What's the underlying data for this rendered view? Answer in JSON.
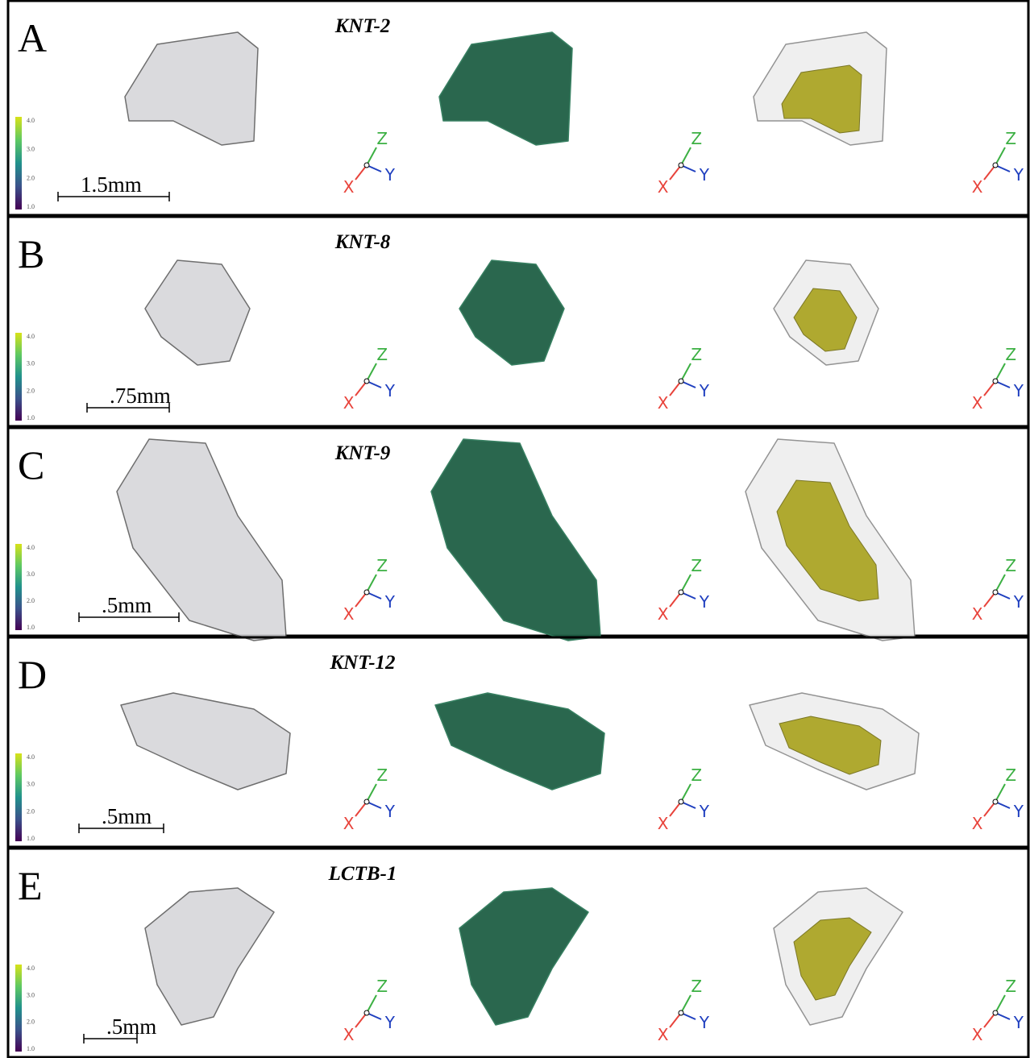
{
  "panels": [
    {
      "letter": "A",
      "sample": "KNT-2",
      "scale_label": "1.5mm",
      "colorbar_ticks": [
        "4.0",
        "3.0",
        "2.0",
        "1.0"
      ],
      "axis_labels": {
        "x": "X",
        "y": "Y",
        "z": "Z"
      }
    },
    {
      "letter": "B",
      "sample": "KNT-8",
      "scale_label": ".75mm",
      "colorbar_ticks": [
        "4.0",
        "3.0",
        "2.0",
        "1.0"
      ],
      "axis_labels": {
        "x": "X",
        "y": "Y",
        "z": "Z"
      }
    },
    {
      "letter": "C",
      "sample": "KNT-9",
      "scale_label": ".5mm",
      "colorbar_ticks": [
        "4.0",
        "3.0",
        "2.0",
        "1.0"
      ],
      "axis_labels": {
        "x": "X",
        "y": "Y",
        "z": "Z"
      }
    },
    {
      "letter": "D",
      "sample": "KNT-12",
      "scale_label": ".5mm",
      "colorbar_ticks": [
        "4.0",
        "3.0",
        "2.0",
        "1.0"
      ],
      "axis_labels": {
        "x": "X",
        "y": "Y",
        "z": "Z"
      }
    },
    {
      "letter": "E",
      "sample": "LCTB-1",
      "scale_label": ".5mm",
      "colorbar_ticks": [
        "4.0",
        "3.0",
        "2.0",
        "1.0"
      ],
      "axis_labels": {
        "x": "X",
        "y": "Y",
        "z": "Z"
      }
    }
  ]
}
